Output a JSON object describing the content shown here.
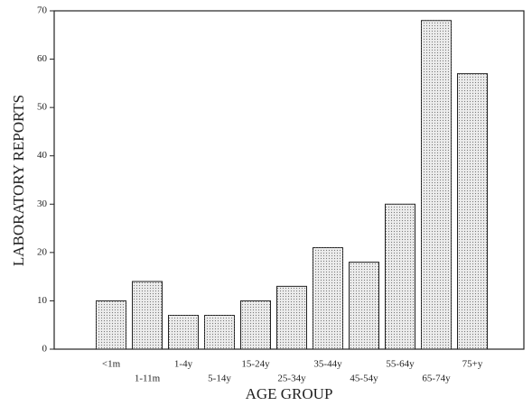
{
  "chart_data": {
    "type": "bar",
    "x_label": "AGE GROUP",
    "y_label": "LABORATORY REPORTS",
    "categories": [
      "<1m",
      "1-11m",
      "1-4y",
      "5-14y",
      "15-24y",
      "25-34y",
      "35-44y",
      "45-54y",
      "55-64y",
      "65-74y",
      "75+y"
    ],
    "values": [
      10,
      14,
      7,
      7,
      10,
      13,
      21,
      18,
      30,
      68,
      57
    ],
    "color": "#ececec",
    "ylim": [
      0,
      70
    ],
    "yticks": [
      0,
      10,
      20,
      30,
      40,
      50,
      60,
      70
    ],
    "grid": false
  }
}
